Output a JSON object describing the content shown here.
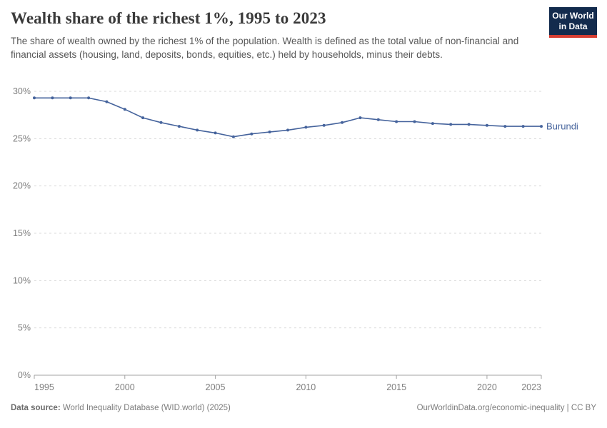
{
  "header": {
    "title": "Wealth share of the richest 1%, 1995 to 2023",
    "subtitle": "The share of wealth owned by the richest 1% of the population. Wealth is defined as the total value of non-financial and financial assets (housing, land, deposits, bonds, equities, etc.) held by households, minus their debts.",
    "logo": {
      "line1": "Our World",
      "line2": "in Data"
    }
  },
  "chart_data": {
    "type": "line",
    "title": "Wealth share of the richest 1%, 1995 to 2023",
    "xlim": [
      1995,
      2023
    ],
    "ylim": [
      0,
      30
    ],
    "x_ticks": [
      1995,
      2000,
      2005,
      2010,
      2015,
      2020,
      2023
    ],
    "y_ticks": [
      0,
      5,
      10,
      15,
      20,
      25,
      30
    ],
    "y_tick_suffix": "%",
    "grid": "horizontal-dashed",
    "legend_position": "end-of-line-label",
    "series": [
      {
        "name": "Burundi",
        "color": "#45639c",
        "x": [
          1995,
          1996,
          1997,
          1998,
          1999,
          2000,
          2001,
          2002,
          2003,
          2004,
          2005,
          2006,
          2007,
          2008,
          2009,
          2010,
          2011,
          2012,
          2013,
          2014,
          2015,
          2016,
          2017,
          2018,
          2019,
          2020,
          2021,
          2022,
          2023
        ],
        "values": [
          29.3,
          29.3,
          29.3,
          29.3,
          28.9,
          28.1,
          27.2,
          26.7,
          26.3,
          25.9,
          25.6,
          25.2,
          25.5,
          25.7,
          25.9,
          26.2,
          26.4,
          26.7,
          27.2,
          27.0,
          26.8,
          26.8,
          26.6,
          26.5,
          26.5,
          26.4,
          26.3,
          26.3,
          26.3
        ]
      }
    ]
  },
  "footer": {
    "datasource_label": "Data source:",
    "datasource_value": " World Inequality Database (WID.world) (2025)",
    "credit": "OurWorldinData.org/economic-inequality | CC BY"
  },
  "colors": {
    "line_accent": "#45639c",
    "logo_bg": "#132b4d",
    "logo_bar": "#d63e32",
    "grid": "#dadada",
    "axis": "#a3a3a3",
    "tick_label": "#7e7e7e"
  }
}
